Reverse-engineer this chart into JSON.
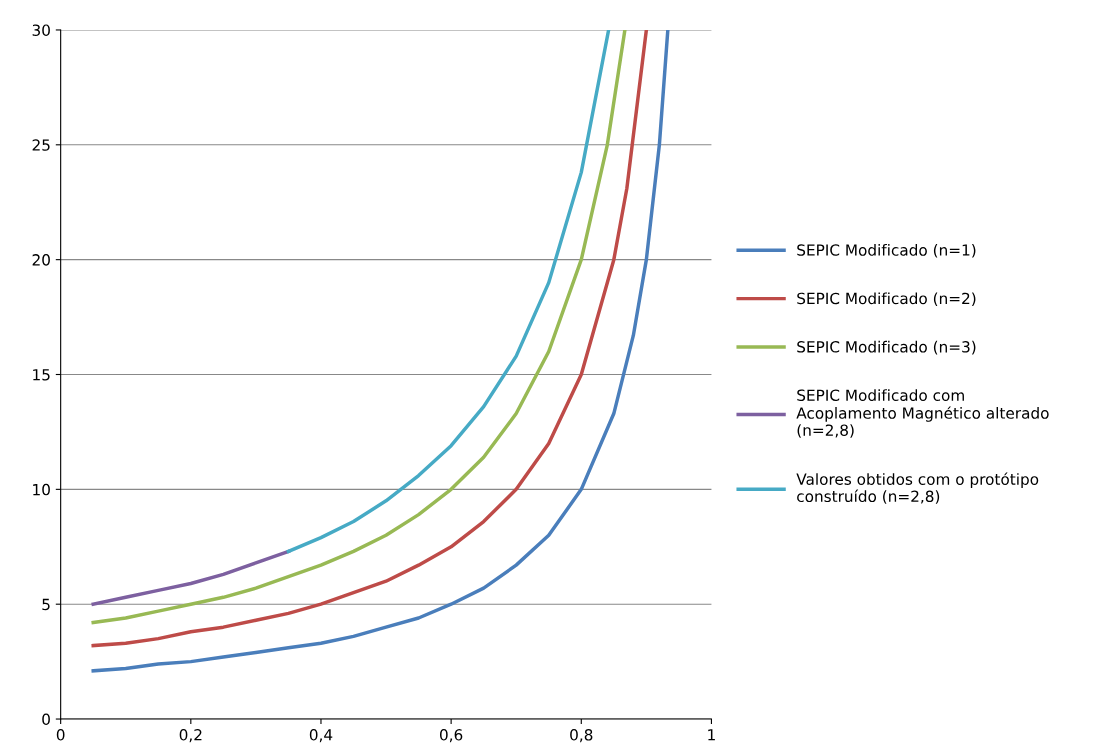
{
  "chart_data": {
    "type": "line",
    "xlim": [
      0,
      1
    ],
    "ylim": [
      0,
      30
    ],
    "xticks": [
      0,
      {
        "value": 0.2,
        "label": "0,2"
      },
      {
        "value": 0.4,
        "label": "0,4"
      },
      {
        "value": 0.6,
        "label": "0,6"
      },
      {
        "value": 0.8,
        "label": "0,8"
      },
      1
    ],
    "yticks": [
      0,
      5,
      10,
      15,
      20,
      25,
      30
    ],
    "grid": "y",
    "legend": "right",
    "marker": "none",
    "line_style": "solid",
    "series": [
      {
        "name": "SEPIC Modificado (n=1)",
        "color": "#4a7ebb",
        "x": [
          0.05,
          0.1,
          0.15,
          0.2,
          0.25,
          0.3,
          0.35,
          0.4,
          0.45,
          0.5,
          0.55,
          0.6,
          0.65,
          0.7,
          0.75,
          0.8,
          0.85,
          0.88,
          0.9,
          0.92,
          0.933
        ],
        "values": [
          2.1,
          2.2,
          2.4,
          2.5,
          2.7,
          2.9,
          3.1,
          3.3,
          3.6,
          4.0,
          4.4,
          5.0,
          5.7,
          6.7,
          8.0,
          10.0,
          13.3,
          16.7,
          20.0,
          25.0,
          30.0
        ]
      },
      {
        "name": "SEPIC Modificado (n=2)",
        "color": "#be4b48",
        "x": [
          0.05,
          0.1,
          0.15,
          0.2,
          0.25,
          0.3,
          0.35,
          0.4,
          0.45,
          0.5,
          0.55,
          0.6,
          0.65,
          0.7,
          0.75,
          0.8,
          0.85,
          0.87,
          0.9
        ],
        "values": [
          3.2,
          3.3,
          3.5,
          3.8,
          4.0,
          4.3,
          4.6,
          5.0,
          5.5,
          6.0,
          6.7,
          7.5,
          8.6,
          10.0,
          12.0,
          15.0,
          20.0,
          23.1,
          30.0
        ]
      },
      {
        "name": "SEPIC Modificado (n=3)",
        "color": "#98b954",
        "x": [
          0.05,
          0.1,
          0.15,
          0.2,
          0.25,
          0.3,
          0.35,
          0.4,
          0.45,
          0.5,
          0.55,
          0.6,
          0.65,
          0.7,
          0.75,
          0.8,
          0.84,
          0.867
        ],
        "values": [
          4.2,
          4.4,
          4.7,
          5.0,
          5.3,
          5.7,
          6.2,
          6.7,
          7.3,
          8.0,
          8.9,
          10.0,
          11.4,
          13.3,
          16.0,
          20.0,
          25.0,
          30.0
        ]
      },
      {
        "name": "SEPIC Modificado com\nAcoplamento Magnético alterado\n(n=2,8)",
        "color": "#7d60a0",
        "x": [
          0.05,
          0.1,
          0.15,
          0.2,
          0.25,
          0.3,
          0.35
        ],
        "values": [
          5.0,
          5.3,
          5.6,
          5.9,
          6.3,
          6.8,
          7.3
        ]
      },
      {
        "name": "Valores obtidos com o protótipo\nconstruído (n=2,8)",
        "color": "#46aac5",
        "x": [
          0.35,
          0.4,
          0.45,
          0.5,
          0.55,
          0.6,
          0.65,
          0.7,
          0.75,
          0.8,
          0.842
        ],
        "values": [
          7.3,
          7.9,
          8.6,
          9.5,
          10.6,
          11.9,
          13.6,
          15.8,
          19.0,
          23.8,
          30.0
        ]
      }
    ]
  }
}
